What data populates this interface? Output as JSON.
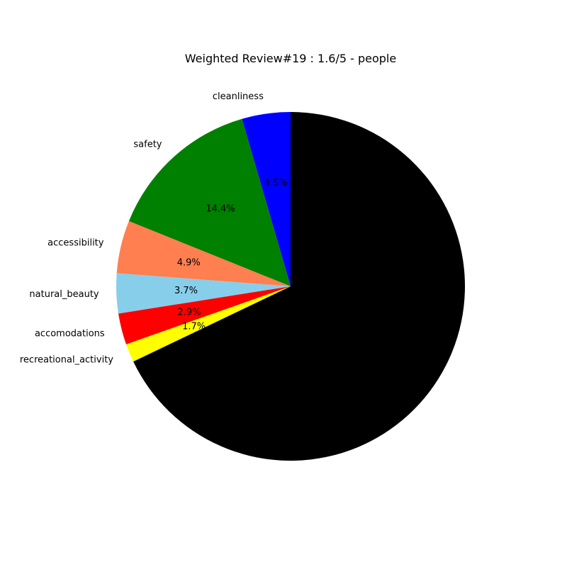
{
  "chart_data": {
    "type": "pie",
    "title": "Weighted Review#19 : 1.6/5 - people",
    "start_angle_deg": 90,
    "direction": "counterclockwise",
    "slices": [
      {
        "label": "cleanliness",
        "value": 4.5,
        "pct_label": "4.5%",
        "color": "#0000ff"
      },
      {
        "label": "safety",
        "value": 14.4,
        "pct_label": "14.4%",
        "color": "#008000"
      },
      {
        "label": "accessibility",
        "value": 4.9,
        "pct_label": "4.9%",
        "color": "#ff7f50"
      },
      {
        "label": "natural_beauty",
        "value": 3.7,
        "pct_label": "3.7%",
        "color": "#87ceeb"
      },
      {
        "label": "accomodations",
        "value": 2.9,
        "pct_label": "2.9%",
        "color": "#ff0000"
      },
      {
        "label": "recreational_activity",
        "value": 1.7,
        "pct_label": "1.7%",
        "color": "#ffff00"
      },
      {
        "label": "",
        "value": 67.9,
        "pct_label": "",
        "color": "#000000"
      }
    ]
  }
}
